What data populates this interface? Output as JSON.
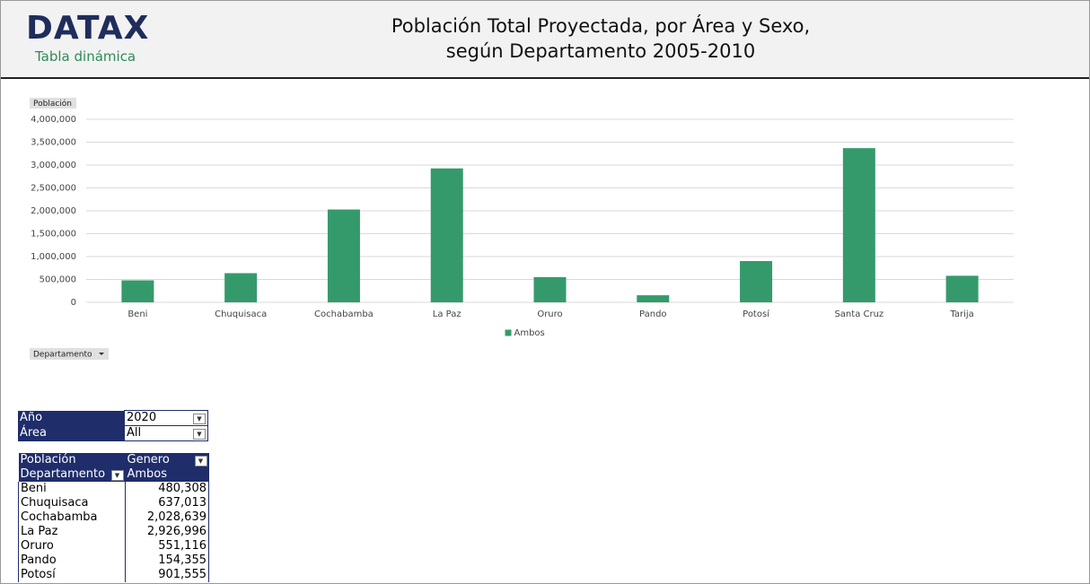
{
  "header": {
    "logo": "DATAX",
    "subtitle": "Tabla dinámica",
    "title": "Población Total Proyectada, por Área y Sexo, según Departamento 2005-2010"
  },
  "chart_data": {
    "type": "bar",
    "ylabel": "Población",
    "xlabel": "Departamento",
    "categories": [
      "Beni",
      "Chuquisaca",
      "Cochabamba",
      "La Paz",
      "Oruro",
      "Pando",
      "Potosí",
      "Santa Cruz",
      "Tarija"
    ],
    "series": [
      {
        "name": "Ambos",
        "color": "#359a6b",
        "values": [
          480308,
          637013,
          2028639,
          2926996,
          551116,
          154355,
          901555,
          3370000,
          580000
        ]
      }
    ],
    "ylim": [
      0,
      4000000
    ],
    "yticks": [
      0,
      {
        "value": 500000,
        "label": "500,000"
      },
      {
        "value": 1000000,
        "label": "1,000,000"
      },
      {
        "value": 1500000,
        "label": "1,500,000"
      },
      {
        "value": 2000000,
        "label": "2,000,000"
      },
      {
        "value": 2500000,
        "label": "2,500,000"
      },
      {
        "value": 3000000,
        "label": "3,000,000"
      },
      {
        "value": 3500000,
        "label": "3,500,000"
      },
      {
        "value": 4000000,
        "label": "4,000,000"
      }
    ],
    "grid": true,
    "legend": "bottom"
  },
  "filters": [
    [
      "Año",
      "2020"
    ],
    [
      "Área",
      "All"
    ]
  ],
  "pivot": {
    "corner": "Población",
    "column_field": "Genero",
    "row_field": "Departamento",
    "column_item": "Ambos",
    "rows": [
      [
        "Beni",
        "480,308"
      ],
      [
        "Chuquisaca",
        "637,013"
      ],
      [
        "Cochabamba",
        "2,028,639"
      ],
      [
        "La Paz",
        "2,926,996"
      ],
      [
        "Oruro",
        "551,116"
      ],
      [
        "Pando",
        "154,355"
      ],
      [
        "Potosí",
        "901,555"
      ]
    ]
  }
}
